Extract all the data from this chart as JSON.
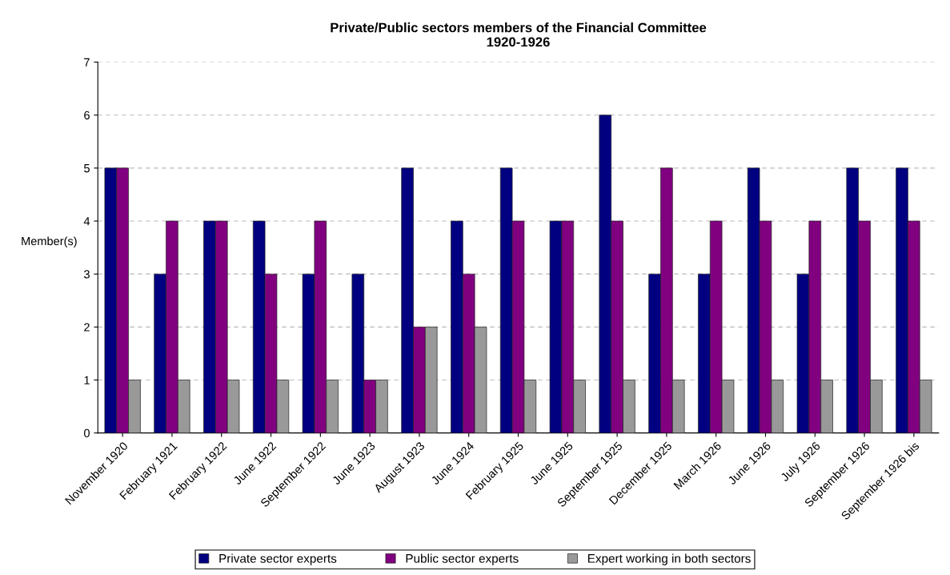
{
  "chart_data": {
    "type": "bar",
    "title": "Private/Public sectors members of the Financial Committee\n1920-1926",
    "ylabel": "Member(s)",
    "categories": [
      "November 1920",
      "February 1921",
      "February 1922",
      "June 1922",
      "September 1922",
      "June 1923",
      "August 1923",
      "June 1924",
      "February 1925",
      "June 1925",
      "September 1925",
      "December 1925",
      "March 1926",
      "June 1926",
      "July 1926",
      "September 1926",
      "September 1926 bis"
    ],
    "series": [
      {
        "name": "Private sector experts",
        "color": "#000080",
        "values": [
          5,
          3,
          4,
          4,
          3,
          3,
          5,
          4,
          5,
          4,
          6,
          3,
          3,
          5,
          3,
          5,
          5
        ]
      },
      {
        "name": "Public sector experts",
        "color": "#800080",
        "values": [
          5,
          4,
          4,
          3,
          4,
          1,
          2,
          3,
          4,
          4,
          4,
          5,
          4,
          4,
          4,
          4,
          4
        ]
      },
      {
        "name": "Expert working in both sectors",
        "color": "#999999",
        "values": [
          1,
          1,
          1,
          1,
          1,
          1,
          2,
          2,
          1,
          1,
          1,
          1,
          1,
          1,
          1,
          1,
          1
        ]
      }
    ],
    "ylim": [
      0,
      7
    ],
    "yticks": [
      0,
      1,
      2,
      3,
      4,
      5,
      6,
      7
    ],
    "grid": "y",
    "legend": "bottom"
  }
}
